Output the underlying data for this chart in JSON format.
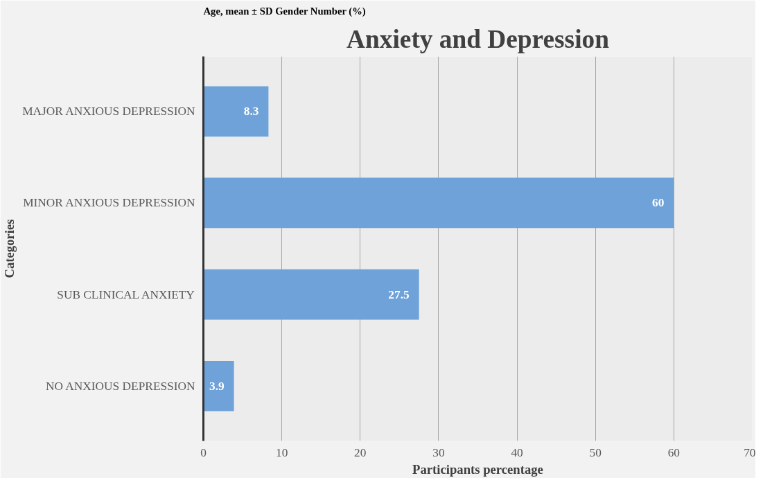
{
  "chart_data": {
    "type": "bar",
    "orientation": "horizontal",
    "title": "Anxiety and Depression",
    "xlabel": "Participants percentage",
    "ylabel": "Categories",
    "categories": [
      "MAJOR ANXIOUS DEPRESSION",
      "MINOR ANXIOUS DEPRESSION",
      "SUB CLINICAL ANXIETY",
      "NO ANXIOUS DEPRESSION"
    ],
    "values": [
      8.3,
      60,
      27.5,
      3.9
    ],
    "color": "#6fa2d8",
    "data_labels": true,
    "xlim": [
      0,
      70
    ],
    "xticks": [
      0,
      10,
      20,
      30,
      40,
      50,
      60,
      70
    ],
    "grid": "x",
    "annotations": [
      "Age, mean ± SD    Gender    Number (%)"
    ]
  }
}
